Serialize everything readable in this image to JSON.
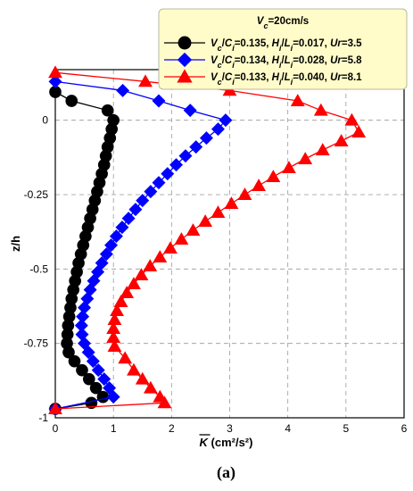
{
  "chart_data": {
    "type": "line",
    "title": "",
    "caption": "(a)",
    "xlabel": "K (cm²/s²)",
    "xlabel_overline": "K",
    "xlabel_unit": " (cm²/s²)",
    "ylabel": "z/h",
    "xlim": [
      0,
      6
    ],
    "ylim": [
      -1,
      0.17
    ],
    "xticks": [
      0,
      1,
      2,
      3,
      4,
      5,
      6
    ],
    "yticks": [
      0,
      -0.25,
      -0.5,
      -0.75,
      -1
    ],
    "ytick_labels": [
      "0",
      "-0.25",
      "-0.5",
      "-0.75",
      "-1"
    ],
    "grid": true,
    "legend_title": "Vc=20cm/s",
    "legend_position": "top-right",
    "series": [
      {
        "name": "Vc/Ci=0.135, Hi/Li=0.017, Ur=3.5",
        "legend_parts": [
          [
            "V",
            0
          ],
          [
            "c",
            1
          ],
          [
            "/",
            0
          ],
          [
            "C",
            0
          ],
          [
            "i",
            1
          ],
          [
            "=0.135, ",
            0
          ],
          [
            "H",
            0
          ],
          [
            "i",
            1
          ],
          [
            "/",
            0
          ],
          [
            "L",
            0
          ],
          [
            "i",
            1
          ],
          [
            "=0.017, ",
            0
          ],
          [
            "Ur",
            0
          ],
          [
            "=3.5",
            0
          ]
        ],
        "color": "#000000",
        "marker": "circle",
        "points": [
          [
            0.0,
            0.095
          ],
          [
            0.28,
            0.065
          ],
          [
            0.9,
            0.033
          ],
          [
            1.0,
            0.0
          ],
          [
            0.97,
            -0.03
          ],
          [
            0.94,
            -0.06
          ],
          [
            0.9,
            -0.09
          ],
          [
            0.87,
            -0.12
          ],
          [
            0.84,
            -0.15
          ],
          [
            0.8,
            -0.18
          ],
          [
            0.76,
            -0.21
          ],
          [
            0.72,
            -0.24
          ],
          [
            0.68,
            -0.27
          ],
          [
            0.64,
            -0.3
          ],
          [
            0.6,
            -0.33
          ],
          [
            0.56,
            -0.36
          ],
          [
            0.52,
            -0.39
          ],
          [
            0.48,
            -0.42
          ],
          [
            0.44,
            -0.45
          ],
          [
            0.4,
            -0.48
          ],
          [
            0.37,
            -0.51
          ],
          [
            0.34,
            -0.54
          ],
          [
            0.31,
            -0.57
          ],
          [
            0.28,
            -0.6
          ],
          [
            0.26,
            -0.63
          ],
          [
            0.24,
            -0.66
          ],
          [
            0.22,
            -0.69
          ],
          [
            0.21,
            -0.72
          ],
          [
            0.2,
            -0.75
          ],
          [
            0.23,
            -0.78
          ],
          [
            0.33,
            -0.81
          ],
          [
            0.46,
            -0.84
          ],
          [
            0.58,
            -0.87
          ],
          [
            0.7,
            -0.9
          ],
          [
            0.82,
            -0.93
          ],
          [
            0.62,
            -0.95
          ],
          [
            0.0,
            -0.97
          ]
        ]
      },
      {
        "name": "Vc/Ci=0.134, Hi/Li=0.028, Ur=5.8",
        "legend_parts": [
          [
            "V",
            0
          ],
          [
            "c",
            1
          ],
          [
            "/",
            0
          ],
          [
            "C",
            0
          ],
          [
            "i",
            1
          ],
          [
            "=0.134, ",
            0
          ],
          [
            "H",
            0
          ],
          [
            "i",
            1
          ],
          [
            "/",
            0
          ],
          [
            "L",
            0
          ],
          [
            "i",
            1
          ],
          [
            "=0.028, ",
            0
          ],
          [
            "Ur",
            0
          ],
          [
            "=5.8",
            0
          ]
        ],
        "color": "#0000ff",
        "marker": "diamond",
        "points": [
          [
            0.0,
            0.13
          ],
          [
            1.16,
            0.1
          ],
          [
            1.78,
            0.065
          ],
          [
            2.32,
            0.033
          ],
          [
            2.93,
            0.0
          ],
          [
            2.8,
            -0.03
          ],
          [
            2.6,
            -0.06
          ],
          [
            2.42,
            -0.09
          ],
          [
            2.24,
            -0.12
          ],
          [
            2.08,
            -0.15
          ],
          [
            1.93,
            -0.18
          ],
          [
            1.78,
            -0.21
          ],
          [
            1.64,
            -0.24
          ],
          [
            1.5,
            -0.27
          ],
          [
            1.38,
            -0.3
          ],
          [
            1.26,
            -0.33
          ],
          [
            1.15,
            -0.36
          ],
          [
            1.05,
            -0.39
          ],
          [
            0.96,
            -0.42
          ],
          [
            0.88,
            -0.45
          ],
          [
            0.8,
            -0.48
          ],
          [
            0.73,
            -0.51
          ],
          [
            0.66,
            -0.54
          ],
          [
            0.6,
            -0.57
          ],
          [
            0.55,
            -0.6
          ],
          [
            0.5,
            -0.63
          ],
          [
            0.47,
            -0.66
          ],
          [
            0.45,
            -0.69
          ],
          [
            0.46,
            -0.72
          ],
          [
            0.5,
            -0.75
          ],
          [
            0.57,
            -0.78
          ],
          [
            0.65,
            -0.81
          ],
          [
            0.74,
            -0.84
          ],
          [
            0.84,
            -0.87
          ],
          [
            0.93,
            -0.9
          ],
          [
            1.0,
            -0.93
          ],
          [
            0.0,
            -0.97
          ]
        ]
      },
      {
        "name": "Vc/Ci=0.133, Hi/Li=0.040, Ur=8.1",
        "legend_parts": [
          [
            "V",
            0
          ],
          [
            "c",
            1
          ],
          [
            "/",
            0
          ],
          [
            "C",
            0
          ],
          [
            "i",
            1
          ],
          [
            "=0.133, ",
            0
          ],
          [
            "H",
            0
          ],
          [
            "i",
            1
          ],
          [
            "/",
            0
          ],
          [
            "L",
            0
          ],
          [
            "i",
            1
          ],
          [
            "=0.040, ",
            0
          ],
          [
            "Ur",
            0
          ],
          [
            "=8.1",
            0
          ]
        ],
        "color": "#ff0000",
        "marker": "triangle",
        "points": [
          [
            0.0,
            0.16
          ],
          [
            1.55,
            0.13
          ],
          [
            3.0,
            0.1
          ],
          [
            4.17,
            0.065
          ],
          [
            4.57,
            0.033
          ],
          [
            5.1,
            0.0
          ],
          [
            5.22,
            -0.04
          ],
          [
            4.92,
            -0.07
          ],
          [
            4.6,
            -0.1
          ],
          [
            4.3,
            -0.13
          ],
          [
            4.02,
            -0.16
          ],
          [
            3.75,
            -0.19
          ],
          [
            3.5,
            -0.22
          ],
          [
            3.26,
            -0.25
          ],
          [
            3.03,
            -0.28
          ],
          [
            2.8,
            -0.31
          ],
          [
            2.58,
            -0.34
          ],
          [
            2.37,
            -0.37
          ],
          [
            2.17,
            -0.4
          ],
          [
            1.98,
            -0.43
          ],
          [
            1.8,
            -0.46
          ],
          [
            1.63,
            -0.49
          ],
          [
            1.48,
            -0.52
          ],
          [
            1.35,
            -0.55
          ],
          [
            1.23,
            -0.58
          ],
          [
            1.13,
            -0.61
          ],
          [
            1.06,
            -0.64
          ],
          [
            1.02,
            -0.67
          ],
          [
            1.0,
            -0.7
          ],
          [
            1.0,
            -0.73
          ],
          [
            1.02,
            -0.76
          ],
          [
            1.2,
            -0.8
          ],
          [
            1.35,
            -0.84
          ],
          [
            1.5,
            -0.87
          ],
          [
            1.64,
            -0.9
          ],
          [
            1.8,
            -0.93
          ],
          [
            1.88,
            -0.95
          ],
          [
            0.0,
            -0.97
          ]
        ]
      }
    ]
  }
}
